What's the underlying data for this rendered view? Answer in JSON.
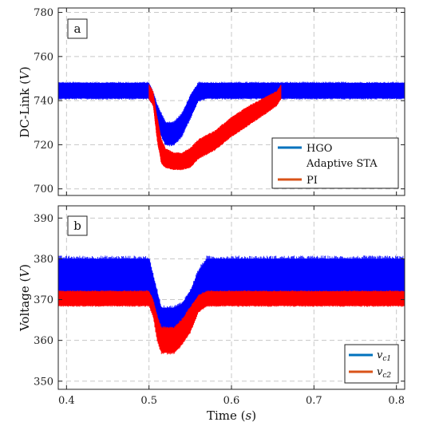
{
  "chart_data": [
    {
      "type": "line",
      "panel_label": "a",
      "ylabel": "DC-Link (V)",
      "xlim": [
        0.39,
        0.81
      ],
      "ylim": [
        697,
        782
      ],
      "yticks": [
        700,
        720,
        740,
        760,
        780
      ],
      "grid": true,
      "legend_position": "bottom-right",
      "series": [
        {
          "name": "HGO",
          "color": "#0000ff",
          "legend_color": "#0072bd",
          "band": [
            [
              0.39,
              741,
              748
            ],
            [
              0.5,
              741,
              748
            ],
            [
              0.505,
              738,
              744
            ],
            [
              0.51,
              728,
              738
            ],
            [
              0.52,
              720,
              730
            ],
            [
              0.53,
              720,
              730
            ],
            [
              0.54,
              724,
              734
            ],
            [
              0.55,
              732,
              742
            ],
            [
              0.56,
              740,
              748
            ],
            [
              0.57,
              741,
              748
            ],
            [
              0.81,
              741,
              748
            ]
          ]
        },
        {
          "name": "Adaptive STA",
          "color": "",
          "legend_color": ""
        },
        {
          "name": "PI",
          "color": "#ff0000",
          "legend_color": "#d95319",
          "band": [
            [
              0.5,
              741,
              747
            ],
            [
              0.505,
              738,
              744
            ],
            [
              0.51,
              722,
              732
            ],
            [
              0.515,
              712,
              722
            ],
            [
              0.52,
              710,
              718
            ],
            [
              0.53,
              709,
              716
            ],
            [
              0.54,
              709,
              716
            ],
            [
              0.55,
              710,
              718
            ],
            [
              0.56,
              714,
              722
            ],
            [
              0.58,
              718,
              726
            ],
            [
              0.6,
              724,
              732
            ],
            [
              0.62,
              729,
              737
            ],
            [
              0.64,
              734,
              741
            ],
            [
              0.655,
              738,
              744
            ],
            [
              0.66,
              741,
              747
            ]
          ]
        }
      ]
    },
    {
      "type": "line",
      "panel_label": "b",
      "xlabel": "Time (s)",
      "ylabel": "Voltage (V)",
      "xlim": [
        0.39,
        0.81
      ],
      "ylim": [
        348,
        393
      ],
      "xticks": [
        0.4,
        0.5,
        0.6,
        0.7,
        0.8
      ],
      "yticks": [
        350,
        360,
        370,
        380,
        390
      ],
      "grid": true,
      "legend_position": "bottom-right",
      "series": [
        {
          "name": "v_c1",
          "legend_text": "vc1",
          "color": "#0000ff",
          "legend_color": "#0072bd",
          "band": [
            [
              0.39,
              370,
              380
            ],
            [
              0.5,
              370,
              380
            ],
            [
              0.505,
              368,
              376
            ],
            [
              0.51,
              364,
              372
            ],
            [
              0.515,
              361,
              368
            ],
            [
              0.53,
              361,
              368
            ],
            [
              0.54,
              362,
              369
            ],
            [
              0.55,
              364,
              372
            ],
            [
              0.56,
              368,
              377
            ],
            [
              0.57,
              370,
              380
            ],
            [
              0.81,
              370,
              380
            ]
          ]
        },
        {
          "name": "v_c2",
          "legend_text": "vc2",
          "color": "#ff0000",
          "legend_color": "#d95319",
          "band": [
            [
              0.39,
              368.5,
              372
            ],
            [
              0.5,
              368.5,
              372
            ],
            [
              0.505,
              366,
              370
            ],
            [
              0.51,
              360,
              366
            ],
            [
              0.515,
              357,
              363
            ],
            [
              0.53,
              357,
              363
            ],
            [
              0.54,
              359,
              365
            ],
            [
              0.55,
              362,
              368
            ],
            [
              0.56,
              367,
              371
            ],
            [
              0.57,
              368.5,
              372
            ],
            [
              0.81,
              368.5,
              372
            ]
          ]
        }
      ]
    }
  ]
}
